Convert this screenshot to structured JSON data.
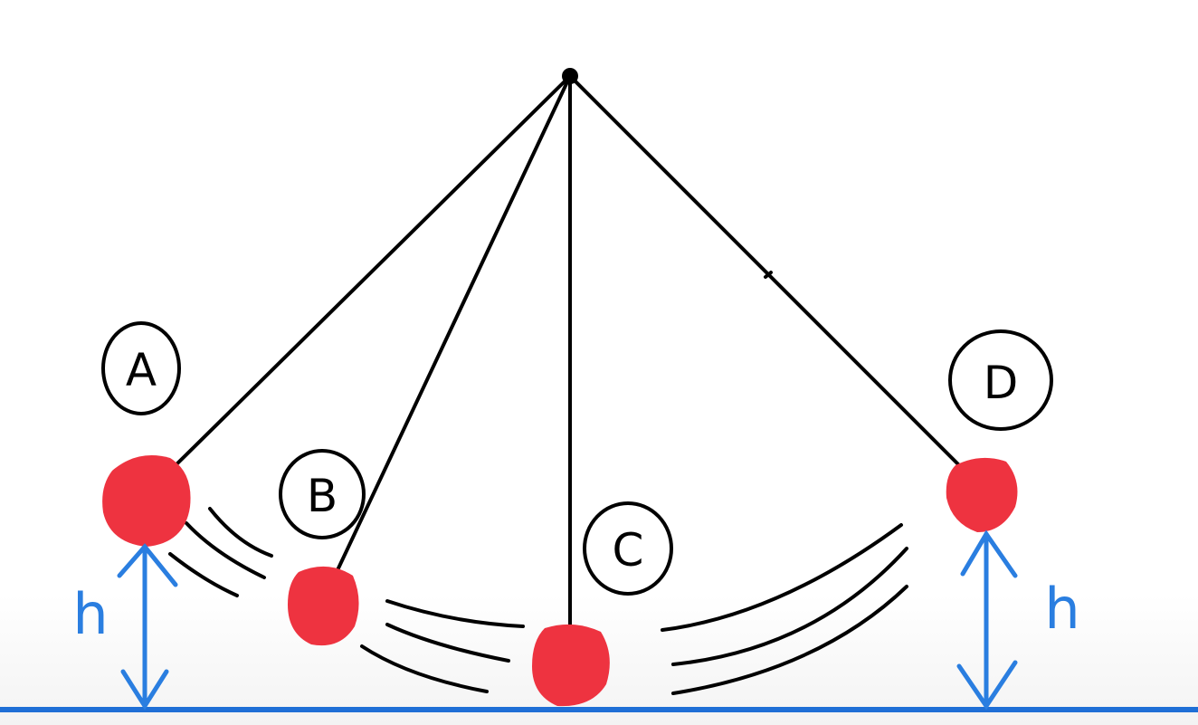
{
  "labels": {
    "a": "A",
    "b": "B",
    "c": "C",
    "d": "D"
  },
  "height_labels": {
    "left": "h",
    "right": "h"
  },
  "colors": {
    "string": "#000000",
    "bob": "#ee3340",
    "height_arrow": "#2a7ee0",
    "ground": "#1f6fd6",
    "motion_lines": "#000000"
  }
}
